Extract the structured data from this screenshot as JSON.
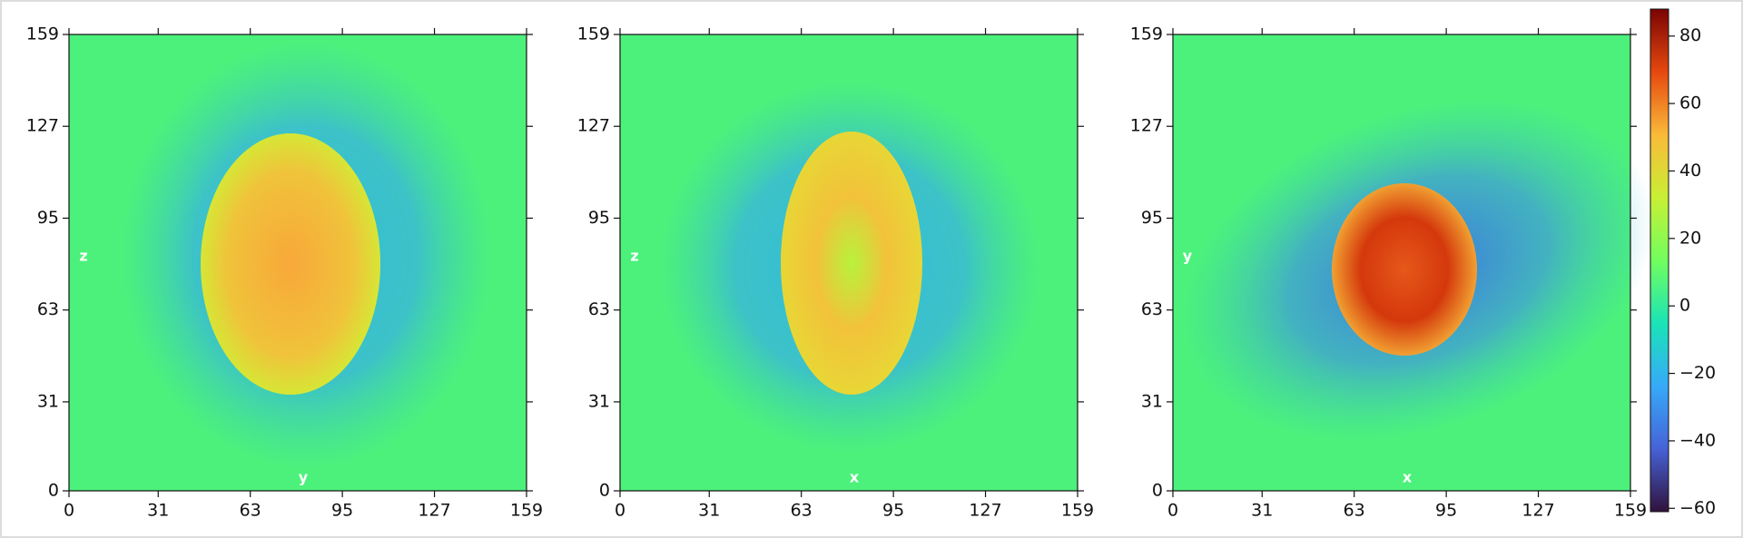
{
  "chart_data": [
    {
      "type": "heatmap",
      "xlabel": "y",
      "ylabel": "z",
      "xlim": [
        0,
        159
      ],
      "ylim": [
        0,
        159
      ],
      "xticks": [
        0,
        31,
        63,
        95,
        127,
        159
      ],
      "yticks": [
        0,
        31,
        63,
        95,
        127,
        159
      ]
    },
    {
      "type": "heatmap",
      "xlabel": "x",
      "ylabel": "z",
      "xlim": [
        0,
        159
      ],
      "ylim": [
        0,
        159
      ],
      "xticks": [
        0,
        31,
        63,
        95,
        127,
        159
      ],
      "yticks": [
        0,
        31,
        63,
        95,
        127,
        159
      ]
    },
    {
      "type": "heatmap",
      "xlabel": "x",
      "ylabel": "y",
      "xlim": [
        0,
        159
      ],
      "ylim": [
        0,
        159
      ],
      "xticks": [
        0,
        31,
        63,
        95,
        127,
        159
      ],
      "yticks": [
        0,
        31,
        63,
        95,
        127,
        159
      ]
    }
  ],
  "colorbar": {
    "lim": [
      -61,
      88
    ],
    "ticks": [
      {
        "value": -60,
        "label": "−60"
      },
      {
        "value": -40,
        "label": "−40"
      },
      {
        "value": -20,
        "label": "−20"
      },
      0,
      20,
      40,
      60,
      80
    ]
  }
}
